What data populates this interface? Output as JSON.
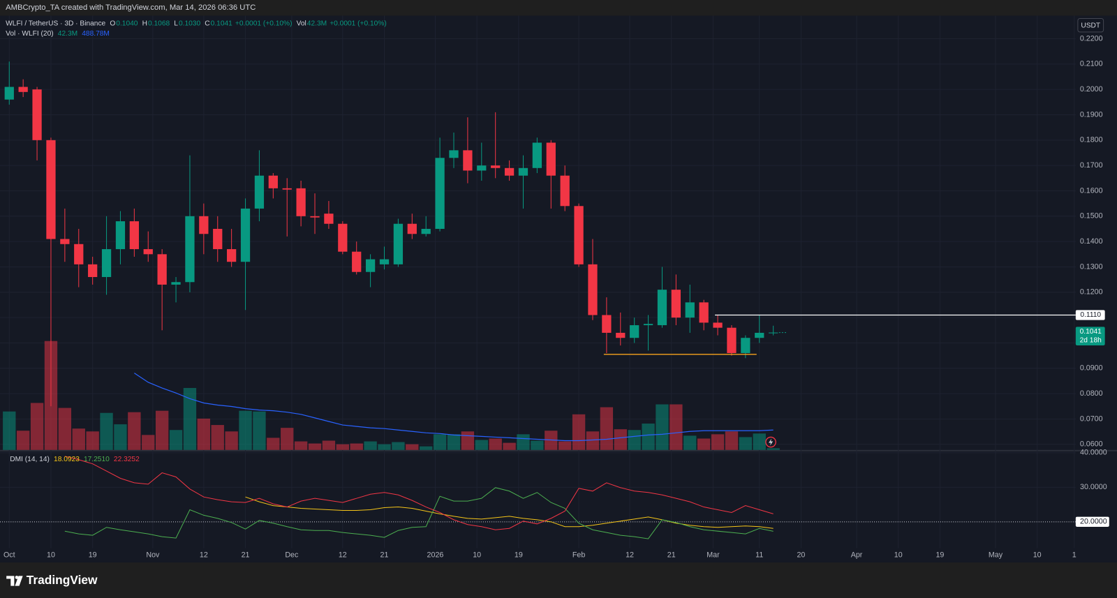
{
  "header": {
    "attribution": "AMBCrypto_TA created with TradingView.com, Mar 14, 2026 06:36 UTC"
  },
  "footer": {
    "logo": "TradingView"
  },
  "chart_data": [
    {
      "type": "candlestick",
      "title": "WLFI / TetherUS · 3D · Binance",
      "legend": [
        {
          "label": "O",
          "value": "0.1040"
        },
        {
          "label": "H",
          "value": "0.1068"
        },
        {
          "label": "L",
          "value": "0.1030"
        },
        {
          "label": "C",
          "value": "0.1041"
        },
        {
          "value": "+0.0001 (+0.10%)"
        },
        {
          "label": "Vol",
          "value": "42.3M"
        },
        {
          "value": "+0.0001 (+0.10%)"
        }
      ],
      "currency": "USDT",
      "up_color": "#089981",
      "down_color": "#f23645",
      "x": [
        0,
        1,
        2,
        3,
        4,
        5,
        6,
        7,
        8,
        9,
        10,
        11,
        12,
        13,
        14,
        15,
        16,
        17,
        18,
        19,
        20,
        21,
        22,
        23,
        24,
        25,
        26,
        27,
        28,
        29,
        30,
        31,
        32,
        33,
        34,
        35,
        36,
        37,
        38,
        39,
        40,
        41,
        42,
        43,
        44,
        45,
        46,
        47,
        48,
        49,
        50,
        51,
        52,
        53,
        54,
        55
      ],
      "open": [
        0.196,
        0.201,
        0.2,
        0.18,
        0.141,
        0.139,
        0.131,
        0.126,
        0.137,
        0.148,
        0.137,
        0.135,
        0.123,
        0.124,
        0.15,
        0.145,
        0.137,
        0.132,
        0.153,
        0.166,
        0.161,
        0.161,
        0.15,
        0.151,
        0.147,
        0.136,
        0.128,
        0.131,
        0.131,
        0.147,
        0.143,
        0.145,
        0.173,
        0.176,
        0.168,
        0.17,
        0.169,
        0.166,
        0.169,
        0.179,
        0.166,
        0.154,
        0.131,
        0.111,
        0.104,
        0.102,
        0.107,
        0.107,
        0.121,
        0.11,
        0.116,
        0.108,
        0.106,
        0.096,
        0.102,
        0.104
      ],
      "high": [
        0.211,
        0.204,
        0.201,
        0.181,
        0.153,
        0.145,
        0.134,
        0.15,
        0.152,
        0.153,
        0.144,
        0.137,
        0.126,
        0.174,
        0.155,
        0.15,
        0.145,
        0.157,
        0.176,
        0.167,
        0.165,
        0.164,
        0.159,
        0.156,
        0.148,
        0.14,
        0.135,
        0.138,
        0.149,
        0.151,
        0.15,
        0.181,
        0.183,
        0.189,
        0.179,
        0.191,
        0.172,
        0.174,
        0.181,
        0.18,
        0.17,
        0.155,
        0.141,
        0.118,
        0.112,
        0.11,
        0.111,
        0.13,
        0.127,
        0.123,
        0.117,
        0.111,
        0.107,
        0.103,
        0.111,
        0.1068
      ],
      "low": [
        0.194,
        0.197,
        0.172,
        0.075,
        0.132,
        0.122,
        0.123,
        0.119,
        0.131,
        0.134,
        0.132,
        0.105,
        0.116,
        0.12,
        0.135,
        0.132,
        0.13,
        0.113,
        0.148,
        0.157,
        0.142,
        0.146,
        0.143,
        0.145,
        0.135,
        0.127,
        0.122,
        0.129,
        0.13,
        0.141,
        0.142,
        0.144,
        0.169,
        0.163,
        0.164,
        0.165,
        0.164,
        0.153,
        0.167,
        0.153,
        0.152,
        0.13,
        0.109,
        0.096,
        0.099,
        0.1,
        0.097,
        0.106,
        0.107,
        0.104,
        0.105,
        0.103,
        0.095,
        0.094,
        0.1,
        0.103
      ],
      "close": [
        0.201,
        0.199,
        0.18,
        0.141,
        0.139,
        0.131,
        0.126,
        0.137,
        0.148,
        0.137,
        0.135,
        0.123,
        0.124,
        0.15,
        0.143,
        0.137,
        0.132,
        0.153,
        0.166,
        0.161,
        0.1605,
        0.15,
        0.1495,
        0.147,
        0.136,
        0.128,
        0.133,
        0.133,
        0.147,
        0.143,
        0.145,
        0.173,
        0.176,
        0.168,
        0.17,
        0.169,
        0.166,
        0.169,
        0.179,
        0.166,
        0.154,
        0.131,
        0.111,
        0.104,
        0.102,
        0.107,
        0.1075,
        0.121,
        0.11,
        0.116,
        0.108,
        0.106,
        0.096,
        0.102,
        0.104,
        0.1041
      ],
      "xlim": [
        -0.667,
        76.77
      ],
      "ylim": [
        0.0578,
        0.2291
      ],
      "yticks": [
        {
          "value": 0.06,
          "label": "0.0600"
        },
        {
          "value": 0.07,
          "label": "0.0700"
        },
        {
          "value": 0.08,
          "label": "0.0800"
        },
        {
          "value": 0.09,
          "label": "0.0900"
        },
        {
          "value": 0.1,
          "label": "0.1000"
        },
        {
          "value": 0.11,
          "label": "0.1100"
        },
        {
          "value": 0.12,
          "label": "0.1200"
        },
        {
          "value": 0.13,
          "label": "0.1300"
        },
        {
          "value": 0.14,
          "label": "0.1400"
        },
        {
          "value": 0.15,
          "label": "0.1500"
        },
        {
          "value": 0.16,
          "label": "0.1600"
        },
        {
          "value": 0.17,
          "label": "0.1700"
        },
        {
          "value": 0.18,
          "label": "0.1800"
        },
        {
          "value": 0.19,
          "label": "0.1900"
        },
        {
          "value": 0.2,
          "label": "0.2000"
        },
        {
          "value": 0.21,
          "label": "0.2100"
        },
        {
          "value": 0.22,
          "label": "0.2200"
        }
      ],
      "hlines": [
        {
          "value": 0.111,
          "label": "0.1110",
          "color": "#ffffff",
          "from": 50.8
        },
        {
          "value": 0.0955,
          "color": "#f7a21b",
          "from": 42.8,
          "to": 53.8
        }
      ],
      "last_price_label": "0.1041",
      "countdown": "2d 18h"
    },
    {
      "type": "volume",
      "title": "Vol · WLFI (20)",
      "legend": [
        "42.3M",
        "488.78M"
      ],
      "ma_color": "#2962ff",
      "values": [
        945,
        473,
        1155,
        2678,
        1033,
        525,
        455,
        910,
        630,
        928,
        368,
        963,
        490,
        1523,
        770,
        613,
        455,
        963,
        945,
        298,
        543,
        210,
        158,
        228,
        140,
        158,
        210,
        140,
        193,
        140,
        88,
        385,
        385,
        455,
        245,
        280,
        175,
        385,
        228,
        473,
        210,
        875,
        455,
        1050,
        508,
        490,
        648,
        1120,
        1120,
        350,
        280,
        385,
        455,
        315,
        403,
        42.3
      ],
      "ma": [
        null,
        null,
        null,
        null,
        null,
        null,
        null,
        null,
        null,
        1890,
        1663,
        1523,
        1400,
        1260,
        1155,
        1103,
        1068,
        1015,
        980,
        963,
        928,
        875,
        788,
        700,
        613,
        578,
        543,
        525,
        490,
        455,
        420,
        403,
        368,
        350,
        333,
        315,
        298,
        280,
        263,
        245,
        228,
        228,
        245,
        263,
        298,
        333,
        368,
        385,
        420,
        455,
        473,
        473,
        473,
        473,
        473,
        488.78
      ],
      "xlim": [
        -0.667,
        76.77
      ]
    },
    {
      "type": "line",
      "title": "DMI (14, 14)",
      "series": [
        {
          "color": "#f5c518",
          "last_label": "18.0923",
          "values": [
            null,
            null,
            null,
            null,
            null,
            null,
            null,
            null,
            null,
            null,
            null,
            null,
            null,
            null,
            null,
            null,
            null,
            27.2,
            25.8,
            24.7,
            24.3,
            23.9,
            23.7,
            23.5,
            23.3,
            23.3,
            23.5,
            24.1,
            24.3,
            23.9,
            23.1,
            22.3,
            21.6,
            21,
            20.8,
            21.2,
            21.6,
            21,
            20.6,
            20,
            18.6,
            18.6,
            19,
            19.6,
            20.2,
            20.8,
            21.4,
            20.6,
            19.6,
            19,
            18.6,
            18.4,
            18.6,
            18.8,
            18.6,
            18.0923
          ]
        },
        {
          "color": "#4caf50",
          "last_label": "17.2510",
          "values": [
            null,
            null,
            null,
            null,
            17.3,
            16.5,
            16.1,
            18.4,
            17.7,
            17.1,
            16.5,
            15.7,
            15.3,
            23.5,
            21.9,
            21,
            19.8,
            17.9,
            20.4,
            19.6,
            18.6,
            17.7,
            17.5,
            17.5,
            16.9,
            16.5,
            16.1,
            15.5,
            17.5,
            18.4,
            18.6,
            27.4,
            26,
            26,
            26.8,
            29.9,
            28.9,
            26.8,
            28.5,
            25.6,
            23.9,
            19.6,
            17.7,
            16.9,
            16.1,
            15.7,
            15.1,
            20.6,
            19.8,
            18.6,
            17.7,
            17.3,
            16.9,
            16.5,
            18.1,
            17.251
          ]
        },
        {
          "color": "#f23645",
          "last_label": "22.3252",
          "values": [
            null,
            null,
            null,
            null,
            39,
            38,
            36.8,
            34.7,
            32.6,
            31.3,
            30.9,
            34.2,
            33,
            29.5,
            27.2,
            26.4,
            25.8,
            25.6,
            26.8,
            25.2,
            24.3,
            26,
            26.8,
            26.2,
            25.6,
            26.8,
            28,
            28.5,
            27.8,
            26.2,
            24.3,
            22.7,
            20.6,
            19.2,
            18.6,
            17.7,
            18.1,
            20.2,
            19.4,
            21,
            23.1,
            29.7,
            28.9,
            31.3,
            29.9,
            28.9,
            28.5,
            27.8,
            26.8,
            25.8,
            24.3,
            23.5,
            22.7,
            24.7,
            23.5,
            22.3252
          ]
        }
      ],
      "hline": 20,
      "xlim": [
        -0.667,
        76.77
      ],
      "ylim": [
        12.37,
        40.41
      ],
      "yticks": [
        {
          "value": 20,
          "label": "20.0000"
        },
        {
          "value": 30,
          "label": "30.0000"
        },
        {
          "value": 40,
          "label": "40.0000"
        }
      ],
      "xticks": [
        {
          "value": 0,
          "label": "Oct"
        },
        {
          "value": 3,
          "label": "10"
        },
        {
          "value": 6,
          "label": "19"
        },
        {
          "value": 10.333,
          "label": "Nov"
        },
        {
          "value": 14,
          "label": "12"
        },
        {
          "value": 17,
          "label": "21"
        },
        {
          "value": 20.333,
          "label": "Dec"
        },
        {
          "value": 24,
          "label": "12"
        },
        {
          "value": 27,
          "label": "21"
        },
        {
          "value": 30.667,
          "label": "2026"
        },
        {
          "value": 33.667,
          "label": "10"
        },
        {
          "value": 36.667,
          "label": "19"
        },
        {
          "value": 41,
          "label": "Feb"
        },
        {
          "value": 44.667,
          "label": "12"
        },
        {
          "value": 47.667,
          "label": "21"
        },
        {
          "value": 50.667,
          "label": "Mar"
        },
        {
          "value": 54,
          "label": "11"
        },
        {
          "value": 57,
          "label": "20"
        },
        {
          "value": 61,
          "label": "Apr"
        },
        {
          "value": 64,
          "label": "10"
        },
        {
          "value": 67,
          "label": "19"
        },
        {
          "value": 71,
          "label": "May"
        },
        {
          "value": 74,
          "label": "10"
        },
        {
          "value": 76.667,
          "label": "1"
        }
      ]
    }
  ]
}
